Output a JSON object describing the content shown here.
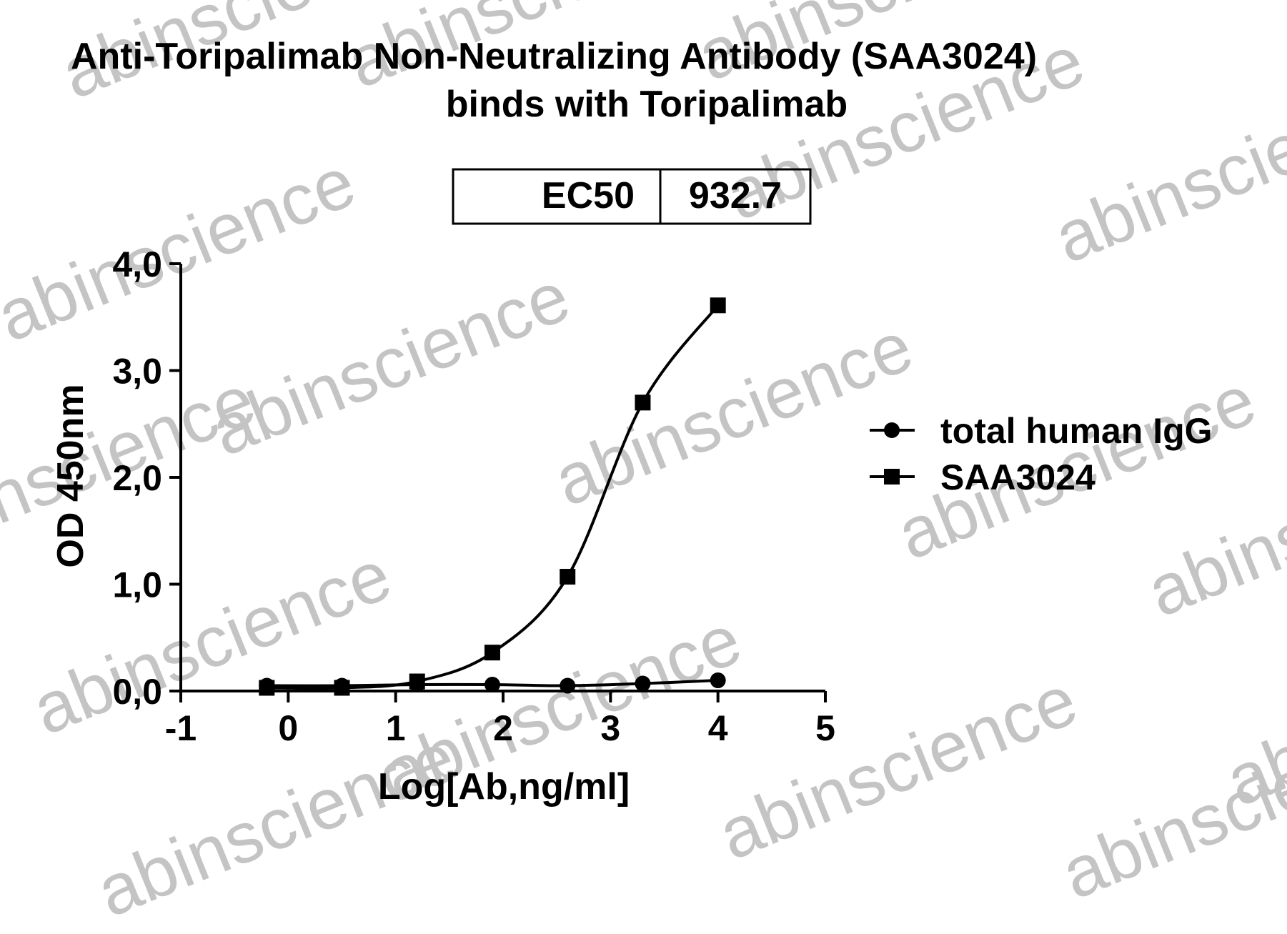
{
  "chart_data": {
    "type": "scatter",
    "title": "Anti-Toripalimab Non-Neutralizing Antibody (SAA3024)",
    "subtitle": "binds with Toripalimab",
    "xlabel": "Log[Ab,ng/ml]",
    "ylabel": "OD 450nm",
    "xlim": [
      -1,
      5
    ],
    "ylim": [
      0,
      4
    ],
    "x_ticks": [
      "-1",
      "0",
      "1",
      "2",
      "3",
      "4",
      "5"
    ],
    "y_ticks": [
      "0,0",
      "1,0",
      "2,0",
      "3,0",
      "4,0"
    ],
    "legend_position": "right",
    "ec50_table": {
      "label": "EC50",
      "value": "932.7"
    },
    "series": [
      {
        "name": "total human IgG",
        "marker": "circle",
        "x": [
          -0.2,
          0.5,
          1.2,
          1.9,
          2.6,
          3.3,
          4.0
        ],
        "values": [
          0.05,
          0.05,
          0.06,
          0.06,
          0.05,
          0.07,
          0.1
        ]
      },
      {
        "name": "SAA3024",
        "marker": "square",
        "x": [
          -0.2,
          0.5,
          1.2,
          1.9,
          2.6,
          3.3,
          4.0
        ],
        "values": [
          0.03,
          0.03,
          0.09,
          0.36,
          1.07,
          2.7,
          3.61
        ]
      }
    ]
  },
  "watermark": "abinscience"
}
